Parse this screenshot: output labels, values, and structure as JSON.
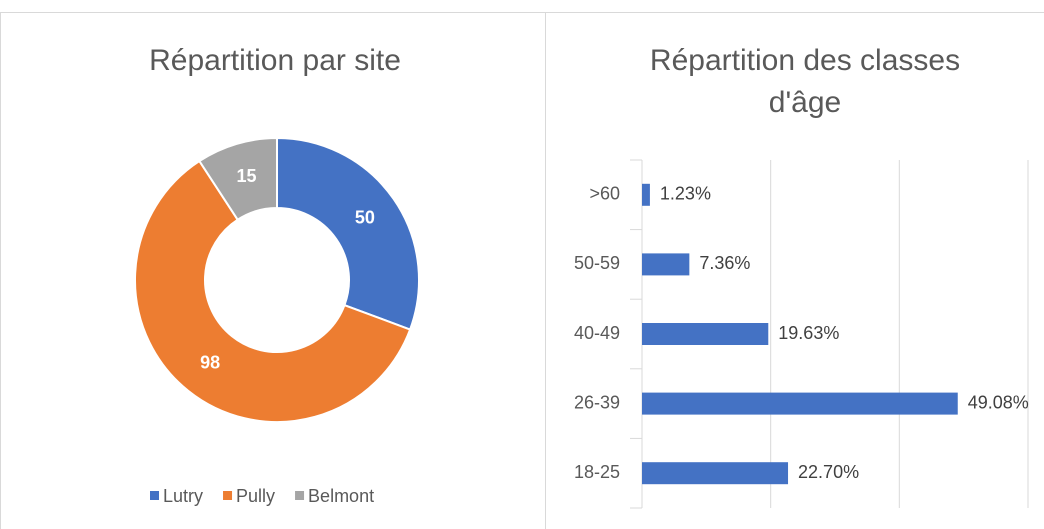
{
  "chart_data": [
    {
      "type": "donut",
      "title": "Répartition par site",
      "categories": [
        "Lutry",
        "Pully",
        "Belmont"
      ],
      "values": [
        50,
        98,
        15
      ],
      "colors": [
        "#4472c4",
        "#ed7d31",
        "#a5a5a5"
      ],
      "legend": "bottom"
    },
    {
      "type": "barh",
      "title": "Répartition des classes d'âge",
      "categories": [
        "18-25",
        "26-39",
        "40-49",
        "50-59",
        ">60"
      ],
      "values": [
        22.7,
        49.08,
        19.63,
        7.36,
        1.23
      ],
      "value_labels": [
        "22.70%",
        "49.08%",
        "19.63%",
        "7.36%",
        "1.23%"
      ],
      "color": "#4472c4",
      "xlim": [
        0,
        60
      ],
      "xticks": [
        0,
        20,
        40,
        60
      ],
      "grid": true
    }
  ]
}
